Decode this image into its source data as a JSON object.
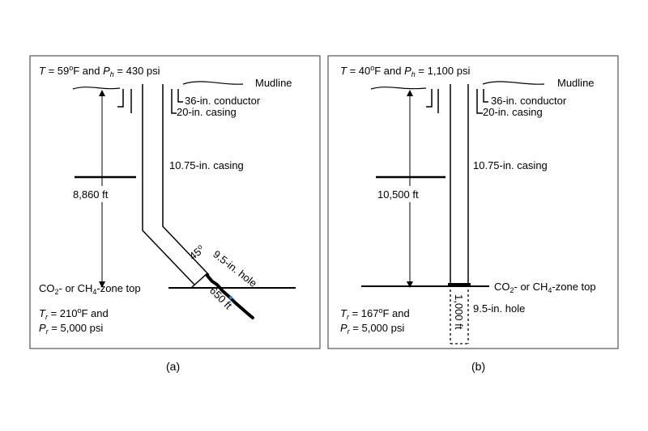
{
  "panel_a": {
    "header": {
      "t_prefix": "T",
      "t_value": " = 59",
      "deg": "o",
      "t_unit": "F and ",
      "p_prefix": "P",
      "p_sub": "h",
      "p_value": " = 430 psi"
    },
    "mudline": "Mudline",
    "conductor": "36-in. conductor",
    "casing20": "20-in. casing",
    "casing1075": "10.75-in. casing",
    "depth": "8,860 ft",
    "angle": "45",
    "angle_deg": "o",
    "hole": "9.5-in. hole",
    "length": "650 ft",
    "zone_top": {
      "co2": "CO",
      "sub2": "2",
      "mid": "- or CH",
      "sub4": "4",
      "end": "-zone top"
    },
    "reservoir_t": {
      "prefix": "T",
      "sub": "r",
      "value": " = 210",
      "deg": "o",
      "unit": "F and"
    },
    "reservoir_p": {
      "prefix": "P",
      "sub": "r",
      "value": " = 5,000 psi"
    },
    "caption": "(a)"
  },
  "panel_b": {
    "header": {
      "t_prefix": "T",
      "t_value": " = 40",
      "deg": "o",
      "t_unit": "F and ",
      "p_prefix": "P",
      "p_sub": "h",
      "p_value": " = 1,100 psi"
    },
    "mudline": "Mudline",
    "conductor": "36-in. conductor",
    "casing20": "20-in. casing",
    "casing1075": "10.75-in. casing",
    "depth": "10,500 ft",
    "hole": "9.5-in. hole",
    "length": "1,000 ft",
    "zone_top": {
      "co2": "CO",
      "sub2": "2",
      "mid": "- or CH",
      "sub4": "4",
      "end": "-zone top"
    },
    "reservoir_t": {
      "prefix": "T",
      "sub": "r",
      "value": " = 167",
      "deg": "o",
      "unit": "F and"
    },
    "reservoir_p": {
      "prefix": "P",
      "sub": "r",
      "value": " = 5,000 psi"
    },
    "caption": "(b)"
  },
  "colors": {
    "line": "#000000",
    "frame": "#555555",
    "accent": "#2a7fd4"
  }
}
